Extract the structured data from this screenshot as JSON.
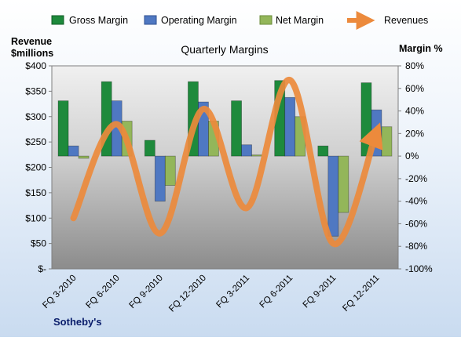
{
  "chart_data": {
    "type": "bar",
    "title": "Quarterly Margins",
    "left_axis_label_line1": "Revenue",
    "left_axis_label_line2": "$millions",
    "right_axis_label": "Margin %",
    "source": "Sotheby's",
    "categories": [
      "FQ 3-2010",
      "FQ 6-2010",
      "FQ 9-2010",
      "FQ 12-2010",
      "FQ 3-2011",
      "FQ 6-2011",
      "FQ 9-2011",
      "FQ 12-2011"
    ],
    "left_axis": {
      "range": [
        0,
        400
      ],
      "ticks": [
        400,
        350,
        300,
        250,
        200,
        150,
        100,
        50,
        0
      ],
      "tick_labels": [
        "$400",
        "$350",
        "$300",
        "$250",
        "$200",
        "$150",
        "$100",
        "$50",
        "$-"
      ]
    },
    "right_axis": {
      "range": [
        -100,
        80
      ],
      "ticks": [
        80,
        60,
        40,
        20,
        0,
        -20,
        -40,
        -60,
        -80,
        -100
      ],
      "tick_labels": [
        "80%",
        "60%",
        "40%",
        "20%",
        "0%",
        "-20%",
        "-40%",
        "-60%",
        "-80%",
        "-100%"
      ]
    },
    "series": [
      {
        "name": "Gross Margin",
        "type": "bar",
        "axis": "right",
        "color": "#1e8a3c",
        "values": [
          49,
          66,
          14,
          66,
          49,
          67,
          9,
          65
        ]
      },
      {
        "name": "Operating Margin",
        "type": "bar",
        "axis": "right",
        "color": "#4f78c2",
        "values": [
          9,
          49,
          -40,
          48,
          10,
          52,
          -71,
          41
        ]
      },
      {
        "name": "Net Margin",
        "type": "bar",
        "axis": "right",
        "color": "#93b65a",
        "values": [
          -2,
          31,
          -26,
          31,
          1,
          35,
          -50,
          26
        ]
      },
      {
        "name": "Revenues",
        "type": "line",
        "axis": "left",
        "color": "#ec8a3c",
        "values": [
          100,
          285,
          70,
          315,
          120,
          372,
          50,
          270
        ]
      }
    ],
    "legend_position": "top",
    "grid": false
  }
}
